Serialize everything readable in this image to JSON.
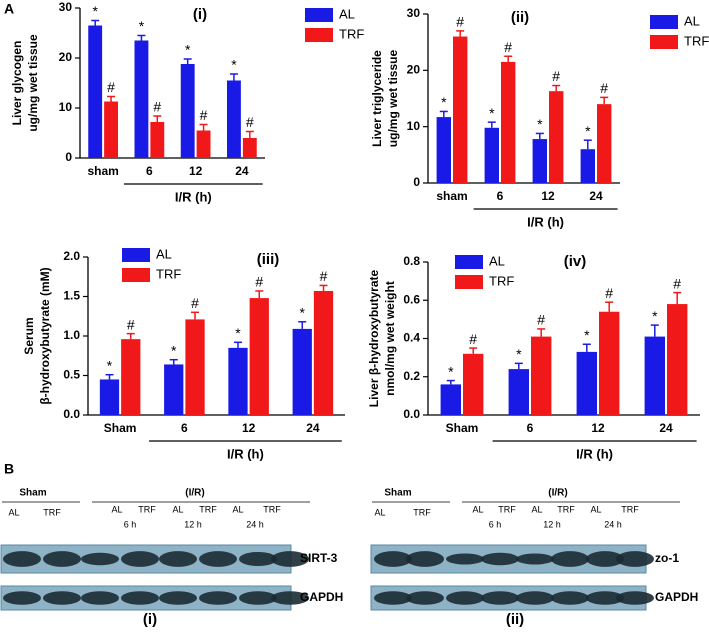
{
  "panel_labels": [
    "A",
    "B"
  ],
  "chart_data": [
    {
      "type": "bar",
      "title": "(i)",
      "y_label": [
        "Liver glycogen",
        "ug/mg wet tissue"
      ],
      "x_label": "I/R (h)",
      "categories": [
        "sham",
        "6",
        "12",
        "24"
      ],
      "ylim": [
        0,
        30
      ],
      "yticks": [
        0,
        10,
        20,
        30
      ],
      "series": [
        {
          "name": "AL",
          "color": "#1a1ae6",
          "values": [
            26.5,
            23.5,
            18.8,
            15.5
          ],
          "errors": [
            1.0,
            1.0,
            1.0,
            1.3
          ],
          "annotations": [
            "*",
            "*",
            "*",
            "*"
          ]
        },
        {
          "name": "TRF",
          "color": "#f01818",
          "values": [
            11.3,
            7.2,
            5.5,
            4.0
          ],
          "errors": [
            1.0,
            1.2,
            1.2,
            1.3
          ],
          "annotations": [
            "#",
            "#",
            "#",
            "#"
          ]
        }
      ]
    },
    {
      "type": "bar",
      "title": "(ii)",
      "y_label": [
        "Liver triglyceride",
        "ug/mg wet tissue"
      ],
      "x_label": "I/R (h)",
      "categories": [
        "sham",
        "6",
        "12",
        "24"
      ],
      "ylim": [
        0,
        30
      ],
      "yticks": [
        0,
        10,
        20,
        30
      ],
      "series": [
        {
          "name": "AL",
          "color": "#1a1ae6",
          "values": [
            11.7,
            9.8,
            7.8,
            6.0
          ],
          "errors": [
            1.0,
            1.0,
            1.0,
            1.6
          ],
          "annotations": [
            "*",
            "*",
            "*",
            "*"
          ]
        },
        {
          "name": "TRF",
          "color": "#f01818",
          "values": [
            26.0,
            21.5,
            16.3,
            14.0
          ],
          "errors": [
            1.0,
            1.0,
            1.0,
            1.2
          ],
          "annotations": [
            "#",
            "#",
            "#",
            "#"
          ]
        }
      ]
    },
    {
      "type": "bar",
      "title": "(iii)",
      "y_label": [
        "Serum",
        "β-hydroxybutyrate (mM)"
      ],
      "x_label": "I/R (h)",
      "categories": [
        "Sham",
        "6",
        "12",
        "24"
      ],
      "ylim": [
        0,
        2
      ],
      "yticks": [
        {
          "value": 0,
          "label": "0.0"
        },
        0.5,
        {
          "value": 1,
          "label": "1.0"
        },
        1.5,
        {
          "value": 2,
          "label": "2.0"
        }
      ],
      "series": [
        {
          "name": "AL",
          "color": "#1a1ae6",
          "values": [
            0.45,
            0.64,
            0.85,
            1.09
          ],
          "errors": [
            0.06,
            0.06,
            0.07,
            0.09
          ],
          "annotations": [
            "*",
            "*",
            "*",
            "*"
          ]
        },
        {
          "name": "TRF",
          "color": "#f01818",
          "values": [
            0.96,
            1.21,
            1.48,
            1.57
          ],
          "errors": [
            0.07,
            0.09,
            0.09,
            0.07
          ],
          "annotations": [
            "#",
            "#",
            "#",
            "#"
          ]
        }
      ]
    },
    {
      "type": "bar",
      "title": "(iv)",
      "y_label": [
        "Liver β-hydroxybutyrate",
        "nmol/mg wet weight"
      ],
      "x_label": "I/R (h)",
      "categories": [
        "Sham",
        "6",
        "12",
        "24"
      ],
      "ylim": [
        0,
        0.8
      ],
      "yticks": [
        {
          "value": 0,
          "label": "0.0"
        },
        0.2,
        0.4,
        0.6,
        0.8
      ],
      "series": [
        {
          "name": "AL",
          "color": "#1a1ae6",
          "values": [
            0.16,
            0.24,
            0.33,
            0.41
          ],
          "errors": [
            0.02,
            0.03,
            0.04,
            0.06
          ],
          "annotations": [
            "*",
            "*",
            "*",
            "*"
          ]
        },
        {
          "name": "TRF",
          "color": "#f01818",
          "values": [
            0.32,
            0.41,
            0.54,
            0.58
          ],
          "errors": [
            0.03,
            0.04,
            0.05,
            0.06
          ],
          "annotations": [
            "#",
            "#",
            "#",
            "#"
          ]
        }
      ]
    }
  ],
  "blots": [
    {
      "title": "(i)",
      "sham": "Sham",
      "ir": "(I/R)",
      "sham_lanes": [
        "AL",
        "TRF"
      ],
      "ir_lanes": [
        "AL",
        "TRF",
        "AL",
        "TRF",
        "AL",
        "TRF"
      ],
      "times": [
        "6 h",
        "12 h",
        "24 h"
      ],
      "rows": [
        "SIRT-3",
        "GAPDH"
      ]
    },
    {
      "title": "(ii)",
      "sham": "Sham",
      "ir": "(I/R)",
      "sham_lanes": [
        "AL",
        "TRF"
      ],
      "ir_lanes": [
        "AL",
        "TRF",
        "AL",
        "TRF",
        "AL",
        "TRF"
      ],
      "times": [
        "6 h",
        "12 h",
        "24 h"
      ],
      "rows": [
        "zo-1",
        "GAPDH"
      ]
    }
  ]
}
